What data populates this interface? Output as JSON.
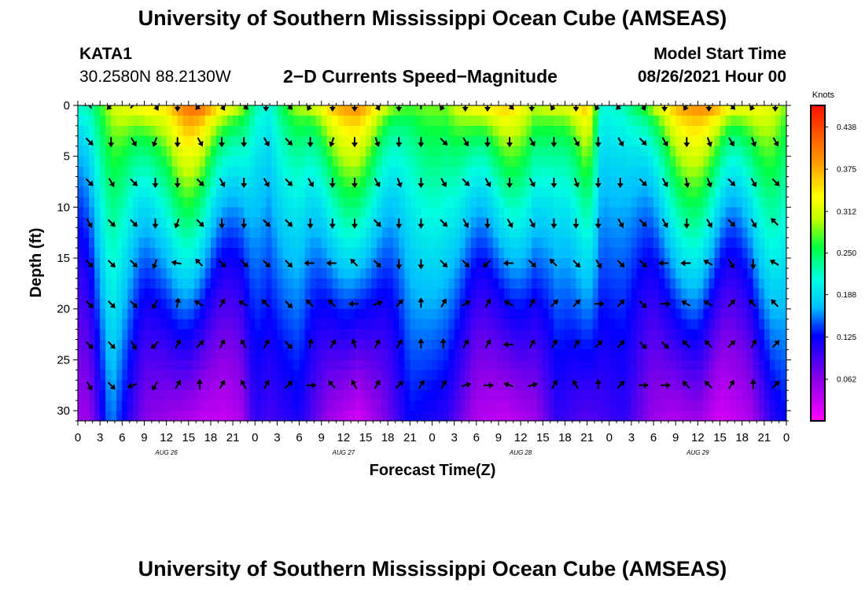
{
  "header": {
    "title": "University of Southern Mississippi Ocean Cube (AMSEAS)",
    "footer_title": "University of Southern Mississippi Ocean Cube (AMSEAS)",
    "station_id": "KATA1",
    "station_coords": "30.2580N  88.2130W",
    "model_start_label": "Model Start Time",
    "model_start_value": "08/26/2021 Hour 00"
  },
  "chart_data": {
    "type": "heatmap",
    "title": "2−D Currents Speed−Magnitude",
    "xlabel": "Forecast Time(Z)",
    "ylabel": "Depth (ft)",
    "x_range": [
      0,
      96
    ],
    "y_range": [
      0,
      31
    ],
    "x_tick_labels": [
      "0",
      "3",
      "6",
      "9",
      "12",
      "15",
      "18",
      "21",
      "0",
      "3",
      "6",
      "9",
      "12",
      "15",
      "18",
      "21",
      "0",
      "3",
      "6",
      "9",
      "12",
      "15",
      "18",
      "21",
      "0",
      "3",
      "6",
      "9",
      "12",
      "15",
      "18",
      "21",
      "0"
    ],
    "y_ticks": [
      0,
      5,
      10,
      15,
      20,
      25,
      30
    ],
    "day_labels": [
      {
        "text": "AUG 26",
        "hour": 12
      },
      {
        "text": "AUG 27",
        "hour": 36
      },
      {
        "text": "AUG 28",
        "hour": 60
      },
      {
        "text": "AUG 29",
        "hour": 84
      }
    ],
    "colorbar": {
      "units": "Knots",
      "labels": [
        "0.438",
        "0.375",
        "0.312",
        "0.250",
        "0.188",
        "0.125",
        "0.062"
      ],
      "min": 0.0,
      "max": 0.47
    },
    "speed_profile_points": [
      {
        "hour": 1.5,
        "top": 0.22,
        "bottom": 0.05
      },
      {
        "hour": 4.5,
        "top": 0.3,
        "bottom": 0.15
      },
      {
        "hour": 9,
        "top": 0.4,
        "bottom": 0.06
      },
      {
        "hour": 12,
        "top": 0.36,
        "bottom": 0.05
      },
      {
        "hour": 15,
        "top": 0.42,
        "bottom": 0.04
      },
      {
        "hour": 17,
        "top": 0.43,
        "bottom": 0.03
      },
      {
        "hour": 20,
        "top": 0.4,
        "bottom": 0.03
      },
      {
        "hour": 22,
        "top": 0.32,
        "bottom": 0.04
      },
      {
        "hour": 24,
        "top": 0.22,
        "bottom": 0.1
      },
      {
        "hour": 26,
        "top": 0.2,
        "bottom": 0.09
      },
      {
        "hour": 30,
        "top": 0.32,
        "bottom": 0.11
      },
      {
        "hour": 34,
        "top": 0.38,
        "bottom": 0.05
      },
      {
        "hour": 38,
        "top": 0.4,
        "bottom": 0.02
      },
      {
        "hour": 42,
        "top": 0.34,
        "bottom": 0.07
      },
      {
        "hour": 45,
        "top": 0.28,
        "bottom": 0.12
      },
      {
        "hour": 50,
        "top": 0.28,
        "bottom": 0.1
      },
      {
        "hour": 54,
        "top": 0.4,
        "bottom": 0.04
      },
      {
        "hour": 58,
        "top": 0.37,
        "bottom": 0.03
      },
      {
        "hour": 62,
        "top": 0.3,
        "bottom": 0.05
      },
      {
        "hour": 65,
        "top": 0.35,
        "bottom": 0.1
      },
      {
        "hour": 69,
        "top": 0.38,
        "bottom": 0.08
      },
      {
        "hour": 71,
        "top": 0.2,
        "bottom": 0.09
      },
      {
        "hour": 74,
        "top": 0.22,
        "bottom": 0.1
      },
      {
        "hour": 78,
        "top": 0.34,
        "bottom": 0.05
      },
      {
        "hour": 81,
        "top": 0.38,
        "bottom": 0.04
      },
      {
        "hour": 84,
        "top": 0.4,
        "bottom": 0.05
      },
      {
        "hour": 87,
        "top": 0.42,
        "bottom": 0.02
      },
      {
        "hour": 91,
        "top": 0.35,
        "bottom": 0.04
      },
      {
        "hour": 94,
        "top": 0.32,
        "bottom": 0.1
      },
      {
        "hour": 96,
        "top": 0.28,
        "bottom": 0.12
      }
    ],
    "vector_depths": [
      0,
      3.5,
      7.5,
      11.5,
      15.5,
      19.5,
      23.5,
      27.5
    ],
    "vector_direction_deg": [
      [
        135,
        225,
        45,
        300,
        270,
        225,
        300,
        315,
        270,
        315,
        240,
        270,
        270,
        300,
        270,
        90,
        240,
        270,
        270,
        315,
        270,
        240,
        270,
        240,
        225,
        300,
        270,
        240,
        270,
        315,
        240,
        270
      ],
      [
        315,
        270,
        300,
        250,
        270,
        300,
        270,
        270,
        300,
        315,
        270,
        250,
        270,
        290,
        270,
        270,
        315,
        300,
        270,
        270,
        300,
        270,
        300,
        270,
        300,
        315,
        300,
        270,
        290,
        300,
        290,
        300
      ],
      [
        315,
        300,
        315,
        270,
        270,
        315,
        300,
        270,
        300,
        315,
        300,
        270,
        270,
        300,
        290,
        270,
        300,
        315,
        300,
        270,
        300,
        270,
        290,
        270,
        270,
        315,
        300,
        280,
        290,
        315,
        300,
        315
      ],
      [
        300,
        315,
        315,
        270,
        250,
        315,
        270,
        270,
        315,
        315,
        270,
        270,
        270,
        315,
        270,
        270,
        315,
        300,
        270,
        300,
        300,
        270,
        270,
        270,
        300,
        315,
        300,
        270,
        300,
        315,
        300,
        135
      ],
      [
        315,
        315,
        315,
        250,
        170,
        135,
        315,
        315,
        315,
        315,
        180,
        180,
        135,
        315,
        270,
        270,
        315,
        315,
        225,
        180,
        315,
        135,
        315,
        300,
        315,
        315,
        180,
        180,
        150,
        300,
        270,
        150
      ],
      [
        315,
        315,
        315,
        240,
        80,
        150,
        60,
        150,
        135,
        315,
        135,
        135,
        180,
        20,
        45,
        90,
        60,
        30,
        60,
        150,
        60,
        45,
        45,
        0,
        45,
        315,
        0,
        150,
        150,
        45,
        135,
        135
      ],
      [
        315,
        315,
        300,
        225,
        60,
        45,
        60,
        120,
        60,
        315,
        80,
        60,
        110,
        60,
        60,
        90,
        90,
        60,
        60,
        180,
        60,
        60,
        60,
        45,
        45,
        315,
        315,
        135,
        135,
        45,
        60,
        45
      ],
      [
        300,
        315,
        200,
        240,
        60,
        90,
        60,
        120,
        60,
        45,
        0,
        130,
        120,
        60,
        45,
        60,
        60,
        15,
        0,
        160,
        15,
        60,
        120,
        90,
        45,
        0,
        0,
        135,
        135,
        60,
        90,
        45
      ]
    ]
  }
}
